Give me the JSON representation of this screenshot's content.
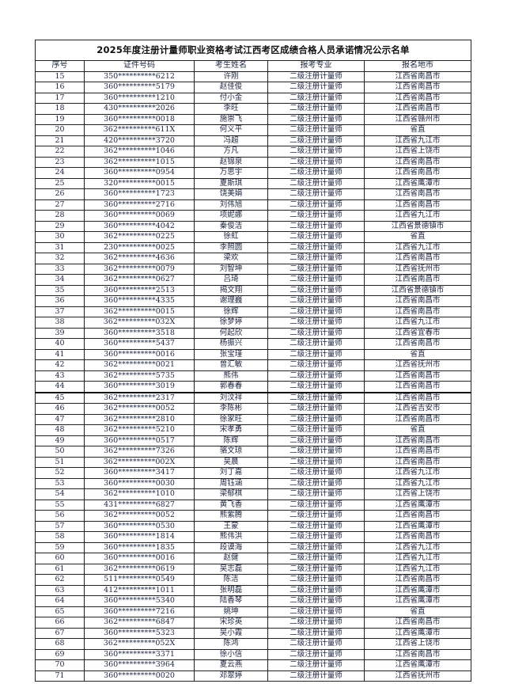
{
  "title": "2025年度注册计量师职业资格考试江西考区成绩合格人员承诺情况公示名单",
  "headers": [
    "序号",
    "证件号码",
    "考生姓名",
    "报考专业",
    "报名地市"
  ],
  "rows": [
    [
      "15",
      "350**********6212",
      "许刚",
      "二级注册计量师",
      "江西省南昌市"
    ],
    [
      "16",
      "360**********5179",
      "赵佳俊",
      "二级注册计量师",
      "江西省南昌市"
    ],
    [
      "17",
      "360**********1210",
      "付小金",
      "二级注册计量师",
      "江西省南昌市"
    ],
    [
      "18",
      "430**********2026",
      "李旺",
      "二级注册计量师",
      "江西省南昌市"
    ],
    [
      "19",
      "360**********0018",
      "施崇飞",
      "二级注册计量师",
      "江西省赣州市"
    ],
    [
      "20",
      "362**********611X",
      "何义平",
      "二级注册计量师",
      "省直"
    ],
    [
      "21",
      "420**********3720",
      "冯超",
      "二级注册计量师",
      "江西省九江市"
    ],
    [
      "22",
      "362**********1046",
      "方凡",
      "二级注册计量师",
      "江西省上饶市"
    ],
    [
      "23",
      "362**********1015",
      "赵锦泉",
      "二级注册计量师",
      "江西省南昌市"
    ],
    [
      "24",
      "360**********0954",
      "万思宇",
      "二级注册计量师",
      "江西省南昌市"
    ],
    [
      "25",
      "320**********0015",
      "夏斯琪",
      "二级注册计量师",
      "江西省鹰潭市"
    ],
    [
      "26",
      "360**********1723",
      "饶美娟",
      "二级注册计量师",
      "江西省南昌市"
    ],
    [
      "27",
      "360**********2716",
      "刘伟旭",
      "二级注册计量师",
      "江西省南昌市"
    ],
    [
      "28",
      "360**********0069",
      "项妮娜",
      "二级注册计量师",
      "江西省九江市"
    ],
    [
      "29",
      "360**********4042",
      "秦俊洁",
      "二级注册计量师",
      "江西省景德镇市"
    ],
    [
      "30",
      "362**********0225",
      "徐虹",
      "二级注册计量师",
      "省直"
    ],
    [
      "31",
      "230**********0025",
      "李照圆",
      "二级注册计量师",
      "江西省九江市"
    ],
    [
      "32",
      "362**********4636",
      "梁欢",
      "二级注册计量师",
      "江西省南昌市"
    ],
    [
      "33",
      "362**********0079",
      "刘智坤",
      "二级注册计量师",
      "江西省抚州市"
    ],
    [
      "34",
      "362**********0627",
      "吕琦",
      "二级注册计量师",
      "江西省南昌市"
    ],
    [
      "35",
      "360**********2513",
      "揭文翔",
      "二级注册计量师",
      "江西省景德镇市"
    ],
    [
      "36",
      "360**********4335",
      "谢理巍",
      "二级注册计量师",
      "江西省南昌市"
    ],
    [
      "37",
      "362**********0015",
      "徐辉",
      "二级注册计量师",
      "江西省南昌市"
    ],
    [
      "38",
      "362**********032X",
      "徐梦婷",
      "二级注册计量师",
      "江西省九江市"
    ],
    [
      "39",
      "360**********3518",
      "何起欣",
      "二级注册计量师",
      "江西省宜春市"
    ],
    [
      "40",
      "360**********5437",
      "杨振兴",
      "二级注册计量师",
      "江西省南昌市"
    ],
    [
      "41",
      "360**********0016",
      "张宝瑾",
      "二级注册计量师",
      "省直"
    ],
    [
      "42",
      "362**********0021",
      "曾汇敏",
      "二级注册计量师",
      "江西省抚州市"
    ],
    [
      "43",
      "362**********5735",
      "熊伟",
      "二级注册计量师",
      "江西省南昌市"
    ],
    [
      "44",
      "360**********3019",
      "郭春春",
      "二级注册计量师",
      "江西省南昌市"
    ],
    [
      "45",
      "362**********2317",
      "刘汶祥",
      "二级注册计量师",
      "江西省南昌市"
    ],
    [
      "46",
      "362**********0052",
      "李陈彬",
      "二级注册计量师",
      "江西省吉安市"
    ],
    [
      "47",
      "362**********2810",
      "徐家旺",
      "二级注册计量师",
      "江西省南昌市"
    ],
    [
      "48",
      "362**********5210",
      "宋孝勇",
      "二级注册计量师",
      "省直"
    ],
    [
      "49",
      "360**********0517",
      "陈辉",
      "二级注册计量师",
      "江西省南昌市"
    ],
    [
      "50",
      "362**********7326",
      "骆文琼",
      "二级注册计量师",
      "江西省南昌市"
    ],
    [
      "51",
      "362**********002X",
      "吴晨",
      "二级注册计量师",
      "江西省南昌市"
    ],
    [
      "52",
      "360**********3417",
      "刘丁嘉",
      "二级注册计量师",
      "江西省九江市"
    ],
    [
      "53",
      "360**********0030",
      "周钰涵",
      "二级注册计量师",
      "江西省九江市"
    ],
    [
      "54",
      "362**********1010",
      "梁郁棋",
      "二级注册计量师",
      "江西省上饶市"
    ],
    [
      "55",
      "431**********6827",
      "黄飞香",
      "二级注册计量师",
      "江西省鹰潭市"
    ],
    [
      "56",
      "362**********0052",
      "熊紫腾",
      "二级注册计量师",
      "江西省南昌市"
    ],
    [
      "57",
      "360**********0530",
      "王蒙",
      "二级注册计量师",
      "江西省鹰潭市"
    ],
    [
      "58",
      "360**********1814",
      "熊伟洪",
      "二级注册计量师",
      "江西省南昌市"
    ],
    [
      "59",
      "360**********1835",
      "段谟海",
      "二级注册计量师",
      "江西省九江市"
    ],
    [
      "60",
      "360**********0016",
      "赵健",
      "二级注册计量师",
      "江西省九江市"
    ],
    [
      "61",
      "362**********0619",
      "吴志磊",
      "二级注册计量师",
      "江西省九江市"
    ],
    [
      "62",
      "511**********0549",
      "陈洁",
      "二级注册计量师",
      "江西省南昌市"
    ],
    [
      "63",
      "412**********1011",
      "张明磊",
      "二级注册计量师",
      "江西省鹰潭市"
    ],
    [
      "64",
      "360**********5340",
      "陆香琴",
      "二级注册计量师",
      "江西省鹰潭市"
    ],
    [
      "65",
      "360**********7216",
      "姚坤",
      "二级注册计量师",
      "省直"
    ],
    [
      "66",
      "362**********6847",
      "宋珍英",
      "二级注册计量师",
      "江西省南昌市"
    ],
    [
      "67",
      "360**********5323",
      "吴小霞",
      "二级注册计量师",
      "江西省鹰潭市"
    ],
    [
      "68",
      "362**********052X",
      "陈鸿",
      "二级注册计量师",
      "江西省上饶市"
    ],
    [
      "69",
      "360**********3371",
      "徐小信",
      "二级注册计量师",
      "江西省南昌市"
    ],
    [
      "70",
      "360**********3964",
      "夏云燕",
      "二级注册计量师",
      "江西省鹰潭市"
    ],
    [
      "71",
      "360**********0020",
      "邓翠婷",
      "二级注册计量师",
      "江西省抚州市"
    ]
  ]
}
